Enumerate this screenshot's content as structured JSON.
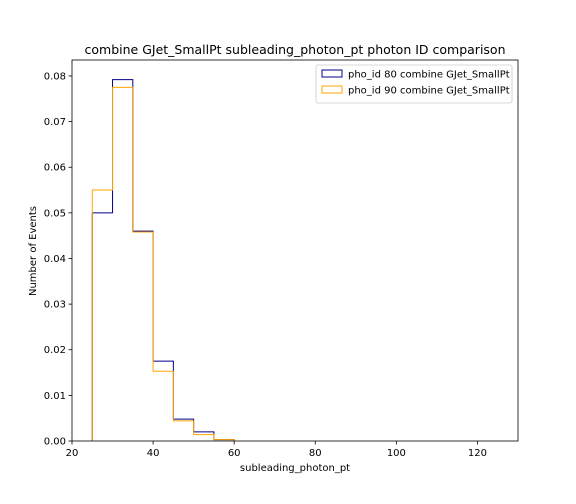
{
  "chart_data": {
    "type": "step-histogram",
    "title": "combine GJet_SmallPt subleading_photon_pt photon ID comparison",
    "xlabel": "subleading_photon_pt",
    "ylabel": "Number of Events",
    "xlim": [
      20,
      130
    ],
    "ylim": [
      0,
      0.0835
    ],
    "xticks": [
      20,
      40,
      60,
      80,
      100,
      120
    ],
    "yticks": [
      0.0,
      0.01,
      0.02,
      0.03,
      0.04,
      0.05,
      0.06,
      0.07,
      0.08
    ],
    "ytick_labels": [
      "0.00",
      "0.01",
      "0.02",
      "0.03",
      "0.04",
      "0.05",
      "0.06",
      "0.07",
      "0.08"
    ],
    "bin_edges": [
      25,
      30,
      35,
      40,
      45,
      50,
      55,
      60
    ],
    "legend_position": "upper right",
    "series": [
      {
        "name": "pho_id 80 combine GJet_SmallPt",
        "color": "#00008b",
        "values": [
          0.05,
          0.0792,
          0.046,
          0.0175,
          0.0048,
          0.002,
          0.0003
        ]
      },
      {
        "name": "pho_id 90 combine GJet_SmallPt",
        "color": "#ffa500",
        "values": [
          0.055,
          0.0775,
          0.0458,
          0.0153,
          0.0044,
          0.0014,
          0.0003
        ]
      }
    ]
  }
}
